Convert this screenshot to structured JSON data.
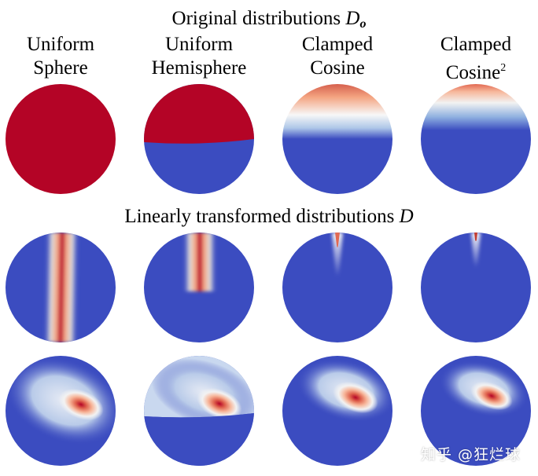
{
  "header": {
    "top_title_text": "Original distributions ",
    "top_title_symbol": "D",
    "top_title_subscript": "o",
    "middle_title_text": "Linearly transformed distributions ",
    "middle_title_symbol": "D"
  },
  "columns": [
    {
      "line1": "Uniform",
      "line2": "Sphere",
      "sup": ""
    },
    {
      "line1": "Uniform",
      "line2": "Hemisphere",
      "sup": ""
    },
    {
      "line1": "Clamped",
      "line2": "Cosine",
      "sup": ""
    },
    {
      "line1": "Clamped",
      "line2": "Cosine",
      "sup": "2"
    }
  ],
  "colors": {
    "low": "#3b4cc0",
    "high": "#b40426",
    "mid": "#f2f2f2"
  },
  "watermark": {
    "text": "知乎 @狂烂球"
  }
}
